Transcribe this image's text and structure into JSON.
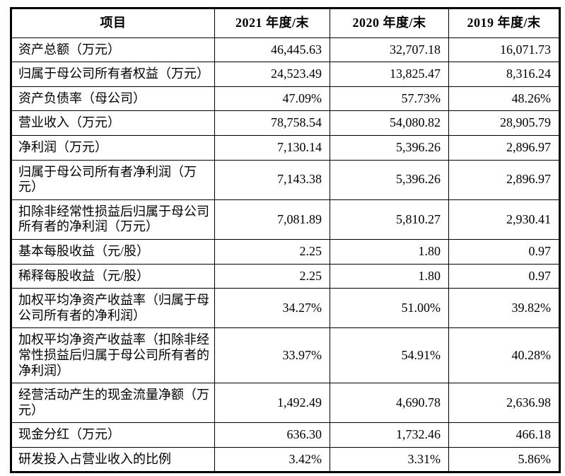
{
  "table": {
    "headers": [
      "项目",
      "2021 年度/末",
      "2020 年度/末",
      "2019 年度/末"
    ],
    "rows": [
      {
        "label": "资产总额（万元）",
        "values": [
          "46,445.63",
          "32,707.18",
          "16,071.73"
        ]
      },
      {
        "label": "归属于母公司所有者权益（万元）",
        "values": [
          "24,523.49",
          "13,825.47",
          "8,316.24"
        ]
      },
      {
        "label": "资产负债率（母公司）",
        "values": [
          "47.09%",
          "57.73%",
          "48.26%"
        ]
      },
      {
        "label": "营业收入（万元）",
        "values": [
          "78,758.54",
          "54,080.82",
          "28,905.79"
        ]
      },
      {
        "label": "净利润（万元）",
        "values": [
          "7,130.14",
          "5,396.26",
          "2,896.97"
        ]
      },
      {
        "label": "归属于母公司所有者净利润（万元）",
        "values": [
          "7,143.38",
          "5,396.26",
          "2,896.97"
        ]
      },
      {
        "label": "扣除非经常性损益后归属于母公司所有者的净利润（万元）",
        "values": [
          "7,081.89",
          "5,810.27",
          "2,930.41"
        ]
      },
      {
        "label": "基本每股收益（元/股）",
        "values": [
          "2.25",
          "1.80",
          "0.97"
        ]
      },
      {
        "label": "稀释每股收益（元/股）",
        "values": [
          "2.25",
          "1.80",
          "0.97"
        ]
      },
      {
        "label": "加权平均净资产收益率（归属于母公司所有者的净利润）",
        "values": [
          "34.27%",
          "51.00%",
          "39.82%"
        ]
      },
      {
        "label": "加权平均净资产收益率（扣除非经常性损益后归属于母公司所有者的净利润）",
        "values": [
          "33.97%",
          "54.91%",
          "40.28%"
        ]
      },
      {
        "label": "经营活动产生的现金流量净额（万元）",
        "values": [
          "1,492.49",
          "4,690.78",
          "2,636.98"
        ]
      },
      {
        "label": "现金分红（万元）",
        "values": [
          "636.30",
          "1,732.46",
          "466.18"
        ]
      },
      {
        "label": "研发投入占营业收入的比例",
        "values": [
          "3.42%",
          "3.31%",
          "5.86%"
        ]
      }
    ]
  },
  "colors": {
    "text": "#000000",
    "border": "#000000",
    "background": "#ffffff"
  }
}
